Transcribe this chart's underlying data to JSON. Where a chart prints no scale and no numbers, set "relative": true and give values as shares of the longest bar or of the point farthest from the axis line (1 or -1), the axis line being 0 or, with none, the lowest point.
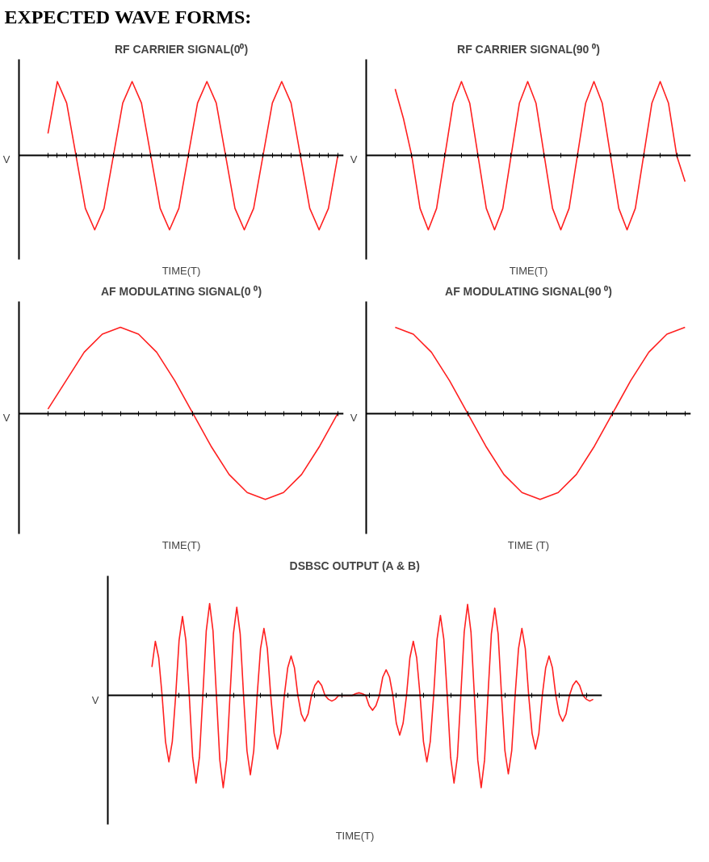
{
  "chart_data": [
    {
      "type": "other",
      "title": "EXPECTED WAVE FORMS:"
    },
    {
      "type": "line",
      "relative": true,
      "title": "RF CARRIER SIGNAL(0⁰)",
      "xlabel": "TIME(T)",
      "ylabel": "V",
      "categories": [
        null,
        null,
        null,
        null,
        null,
        null,
        null,
        null,
        null,
        null,
        null,
        null,
        null,
        null,
        null,
        null,
        null,
        null,
        null,
        null,
        null,
        null,
        null,
        null,
        null,
        null,
        null,
        null,
        null,
        null,
        null,
        null
      ],
      "series": [
        {
          "color": "#ff2020",
          "values": [
            0.3,
            1,
            0.71,
            0,
            -0.71,
            -1,
            -0.71,
            0,
            0.71,
            1,
            0.71,
            0,
            -0.71,
            -1,
            -0.71,
            0,
            0.71,
            1,
            0.71,
            0,
            -0.71,
            -1,
            -0.71,
            0,
            0.71,
            1,
            0.71,
            0,
            -0.71,
            -1,
            -0.71,
            0
          ]
        }
      ]
    },
    {
      "type": "line",
      "relative": true,
      "title": "RF CARRIER SIGNAL(90 ⁰)",
      "xlabel": "TIME(T)",
      "ylabel": "V",
      "categories": [
        null,
        null,
        null,
        null,
        null,
        null,
        null,
        null,
        null,
        null,
        null,
        null,
        null,
        null,
        null,
        null,
        null,
        null,
        null,
        null,
        null,
        null,
        null,
        null,
        null,
        null,
        null,
        null,
        null,
        null,
        null,
        null,
        null,
        null,
        null,
        null
      ],
      "series": [
        {
          "color": "#ff2020",
          "values": [
            0.9,
            0.5,
            0,
            -0.71,
            -1,
            -0.71,
            0,
            0.71,
            1,
            0.71,
            0,
            -0.71,
            -1,
            -0.71,
            0,
            0.71,
            1,
            0.71,
            0,
            -0.71,
            -1,
            -0.71,
            0,
            0.71,
            1,
            0.71,
            0,
            -0.71,
            -1,
            -0.71,
            0,
            0.71,
            1,
            0.71,
            0,
            -0.35
          ]
        }
      ]
    },
    {
      "type": "line",
      "relative": true,
      "title": "AF MODULATING SIGNAL(0 ⁰)",
      "xlabel": "TIME(T)",
      "ylabel": "V",
      "categories": [
        null,
        null,
        null,
        null,
        null,
        null,
        null,
        null,
        null,
        null,
        null,
        null,
        null,
        null,
        null,
        null,
        null
      ],
      "series": [
        {
          "color": "#ff2020",
          "values": [
            0.05,
            0.38,
            0.71,
            0.92,
            1,
            0.92,
            0.71,
            0.38,
            0,
            -0.38,
            -0.71,
            -0.92,
            -1,
            -0.92,
            -0.71,
            -0.38,
            0
          ]
        }
      ]
    },
    {
      "type": "line",
      "relative": true,
      "title": "AF MODULATING SIGNAL(90 ⁰)",
      "xlabel": "TIME (T)",
      "ylabel": "V",
      "categories": [
        null,
        null,
        null,
        null,
        null,
        null,
        null,
        null,
        null,
        null,
        null,
        null,
        null,
        null,
        null,
        null,
        null
      ],
      "series": [
        {
          "color": "#ff2020",
          "values": [
            1,
            0.92,
            0.71,
            0.38,
            0,
            -0.38,
            -0.71,
            -0.92,
            -1,
            -0.92,
            -0.71,
            -0.38,
            0,
            0.38,
            0.71,
            0.92,
            1
          ]
        }
      ]
    },
    {
      "type": "line",
      "relative": true,
      "title": "DSBSC OUTPUT (A & B)",
      "xlabel": "TIME(T)",
      "ylabel": "V",
      "categories": [
        null,
        null,
        null,
        null,
        null,
        null,
        null,
        null,
        null,
        null,
        null,
        null,
        null,
        null,
        null,
        null,
        null,
        null,
        null,
        null,
        null,
        null,
        null,
        null,
        null,
        null,
        null,
        null,
        null,
        null,
        null,
        null,
        null,
        null,
        null,
        null,
        null,
        null,
        null,
        null,
        null,
        null,
        null,
        null,
        null,
        null,
        null,
        null,
        null,
        null,
        null,
        null,
        null,
        null,
        null,
        null,
        null,
        null,
        null,
        null,
        null,
        null,
        null,
        null,
        null,
        null,
        null,
        null,
        null,
        null,
        null,
        null,
        null,
        null,
        null,
        null,
        null,
        null,
        null,
        null,
        null,
        null,
        null,
        null,
        null,
        null,
        null,
        null,
        null,
        null,
        null,
        null,
        null,
        null,
        null,
        null,
        null,
        null,
        null,
        null,
        null,
        null,
        null,
        null,
        null,
        null,
        null,
        null,
        null,
        null,
        null,
        null,
        null,
        null,
        null,
        null,
        null,
        null,
        null,
        null,
        null,
        null,
        null,
        null,
        null,
        null,
        null,
        null,
        null,
        null,
        null
      ],
      "series": [
        {
          "color": "#ff2020",
          "values": [
            0.31,
            0.59,
            0.41,
            0,
            -0.5,
            -0.72,
            -0.5,
            0,
            0.6,
            0.86,
            0.6,
            0,
            -0.67,
            -0.95,
            -0.67,
            0,
            0.7,
            1,
            0.7,
            0,
            -0.7,
            -1,
            -0.7,
            0,
            0.67,
            0.96,
            0.67,
            0,
            -0.6,
            -0.86,
            -0.6,
            0,
            0.51,
            0.73,
            0.51,
            0,
            -0.41,
            -0.58,
            -0.41,
            0,
            0.3,
            0.43,
            0.3,
            0,
            -0.2,
            -0.28,
            -0.2,
            0,
            0.11,
            0.16,
            0.11,
            0,
            -0.04,
            -0.06,
            -0.04,
            0,
            0,
            0,
            0,
            0,
            0.02,
            0.03,
            0.02,
            0,
            -0.11,
            -0.16,
            -0.11,
            0,
            0.2,
            0.28,
            0.2,
            0,
            -0.3,
            -0.43,
            -0.3,
            0,
            0.41,
            0.59,
            0.41,
            0,
            -0.5,
            -0.72,
            -0.5,
            0,
            0.61,
            0.87,
            0.61,
            0,
            -0.67,
            -0.95,
            -0.67,
            0,
            0.69,
            0.99,
            0.69,
            0,
            -0.7,
            -1,
            -0.7,
            0,
            0.67,
            0.95,
            0.67,
            0,
            -0.6,
            -0.85,
            -0.6,
            0,
            0.51,
            0.73,
            0.51,
            0,
            -0.41,
            -0.58,
            -0.41,
            0,
            0.3,
            0.43,
            0.3,
            0,
            -0.2,
            -0.28,
            -0.2,
            0,
            0.11,
            0.16,
            0.11,
            0,
            -0.04,
            -0.06,
            -0.04
          ]
        }
      ]
    }
  ]
}
